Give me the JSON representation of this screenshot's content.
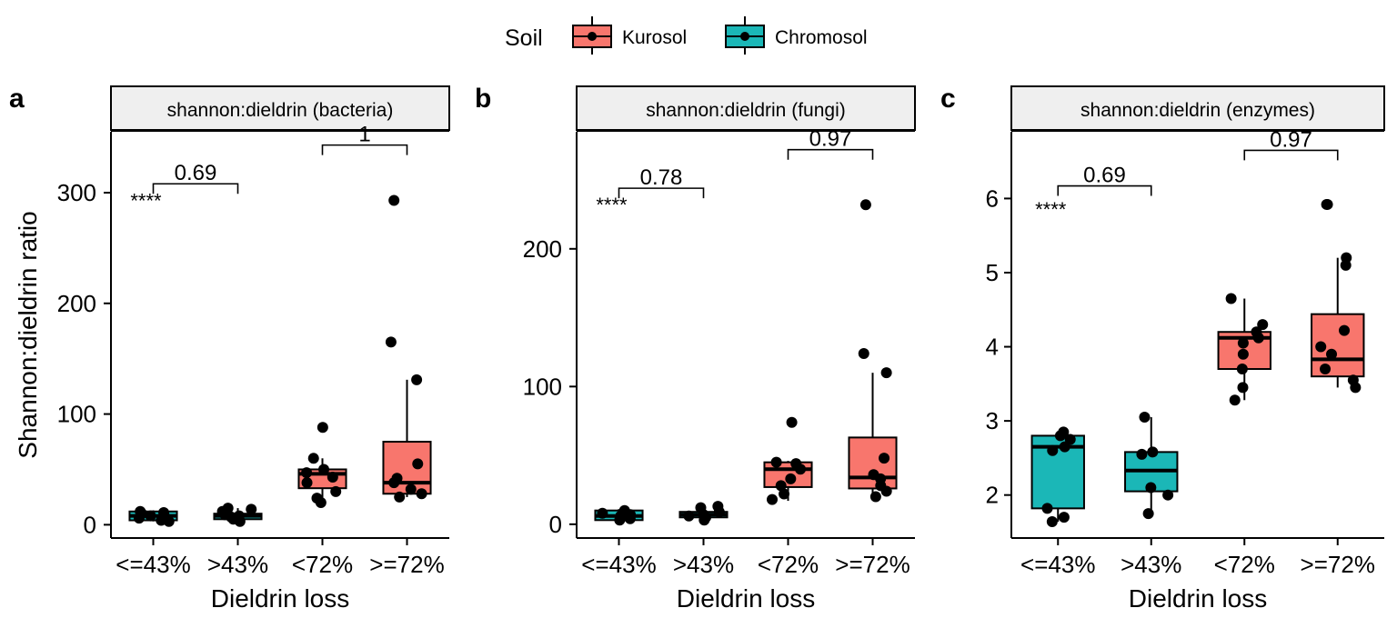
{
  "legend": {
    "title": "Soil",
    "entries": [
      {
        "label": "Kurosol",
        "color": "#F8766D"
      },
      {
        "label": "Chromosol",
        "color": "#1BB7B7"
      }
    ]
  },
  "chart_data": [
    {
      "type": "boxplot",
      "panel_label": "a",
      "strip_title": "shannon:dieldrin (bacteria)",
      "xlabel": "Dieldrin loss",
      "ylabel": "Shannon:dieldrin ratio",
      "ylim": [
        -12,
        355
      ],
      "yticks": [
        0,
        100,
        200,
        300
      ],
      "categories": [
        "<=43%",
        ">43%",
        "<72%",
        ">=72%"
      ],
      "fill_colors": [
        "#1BB7B7",
        "#1BB7B7",
        "#F8766D",
        "#F8766D"
      ],
      "boxes": [
        {
          "q1": 4,
          "median": 8,
          "q3": 12,
          "whisker_low": 3,
          "whisker_high": 13
        },
        {
          "q1": 5,
          "median": 8,
          "q3": 10,
          "whisker_low": 3,
          "whisker_high": 15
        },
        {
          "q1": 33,
          "median": 46,
          "q3": 50,
          "whisker_low": 20,
          "whisker_high": 60
        },
        {
          "q1": 28,
          "median": 38,
          "q3": 75,
          "whisker_low": 25,
          "whisker_high": 131
        }
      ],
      "points": [
        [
          4,
          6,
          8,
          9,
          10,
          11,
          12,
          3
        ],
        [
          3,
          5,
          7,
          8,
          9,
          12,
          14,
          15
        ],
        [
          20,
          24,
          30,
          38,
          43,
          47,
          50,
          60,
          88
        ],
        [
          25,
          28,
          32,
          38,
          42,
          55,
          131,
          165,
          293
        ]
      ],
      "brackets": [
        {
          "from": 0,
          "to": 1,
          "y": 308,
          "label": "0.69"
        },
        {
          "from": 2,
          "to": 3,
          "y": 343,
          "label": "1"
        }
      ],
      "overall_label": {
        "text": "****",
        "y": 298
      }
    },
    {
      "type": "boxplot",
      "panel_label": "b",
      "strip_title": "shannon:dieldrin (fungi)",
      "xlabel": "Dieldrin loss",
      "ylabel": "",
      "ylim": [
        -10,
        285
      ],
      "yticks": [
        0,
        100,
        200
      ],
      "categories": [
        "<=43%",
        ">43%",
        "<72%",
        ">=72%"
      ],
      "fill_colors": [
        "#1BB7B7",
        "#1BB7B7",
        "#F8766D",
        "#F8766D"
      ],
      "boxes": [
        {
          "q1": 3,
          "median": 6,
          "q3": 10,
          "whisker_low": 2,
          "whisker_high": 11
        },
        {
          "q1": 5,
          "median": 7,
          "q3": 9,
          "whisker_low": 3,
          "whisker_high": 13
        },
        {
          "q1": 27,
          "median": 40,
          "q3": 45,
          "whisker_low": 17,
          "whisker_high": 46
        },
        {
          "q1": 26,
          "median": 34,
          "q3": 63,
          "whisker_low": 22,
          "whisker_high": 110
        }
      ],
      "points": [
        [
          3,
          5,
          7,
          8,
          9,
          10,
          4,
          6
        ],
        [
          3,
          5,
          6,
          7,
          9,
          12,
          13
        ],
        [
          18,
          22,
          28,
          33,
          40,
          44,
          45,
          74
        ],
        [
          20,
          24,
          28,
          33,
          36,
          48,
          110,
          124,
          232
        ]
      ],
      "brackets": [
        {
          "from": 0,
          "to": 1,
          "y": 244,
          "label": "0.78"
        },
        {
          "from": 2,
          "to": 3,
          "y": 272,
          "label": "0.97"
        }
      ],
      "overall_label": {
        "text": "****",
        "y": 236
      }
    },
    {
      "type": "boxplot",
      "panel_label": "c",
      "strip_title": "shannon:dieldrin (enzymes)",
      "xlabel": "Dieldrin loss",
      "ylabel": "",
      "ylim": [
        1.42,
        6.9
      ],
      "yticks": [
        2,
        3,
        4,
        5,
        6
      ],
      "categories": [
        "<=43%",
        ">43%",
        "<72%",
        ">=72%"
      ],
      "fill_colors": [
        "#1BB7B7",
        "#1BB7B7",
        "#F8766D",
        "#F8766D"
      ],
      "boxes": [
        {
          "q1": 1.82,
          "median": 2.65,
          "q3": 2.8,
          "whisker_low": 1.64,
          "whisker_high": 2.85
        },
        {
          "q1": 2.05,
          "median": 2.33,
          "q3": 2.58,
          "whisker_low": 1.75,
          "whisker_high": 3.05
        },
        {
          "q1": 3.7,
          "median": 4.12,
          "q3": 4.2,
          "whisker_low": 3.28,
          "whisker_high": 4.65
        },
        {
          "q1": 3.6,
          "median": 3.83,
          "q3": 4.44,
          "whisker_low": 3.45,
          "whisker_high": 5.2
        }
      ],
      "points": [
        [
          1.64,
          1.7,
          1.82,
          2.6,
          2.65,
          2.75,
          2.8,
          2.85
        ],
        [
          1.75,
          2.0,
          2.1,
          2.55,
          2.58,
          3.05
        ],
        [
          3.28,
          3.45,
          3.7,
          3.9,
          4.05,
          4.12,
          4.2,
          4.3,
          4.65
        ],
        [
          3.45,
          3.55,
          3.7,
          3.9,
          4.0,
          4.22,
          5.1,
          5.2,
          5.92,
          5.92
        ]
      ],
      "brackets": [
        {
          "from": 0,
          "to": 1,
          "y": 6.17,
          "label": "0.69"
        },
        {
          "from": 2,
          "to": 3,
          "y": 6.65,
          "label": "0.97"
        }
      ],
      "overall_label": {
        "text": "****",
        "y": 5.93
      }
    }
  ]
}
